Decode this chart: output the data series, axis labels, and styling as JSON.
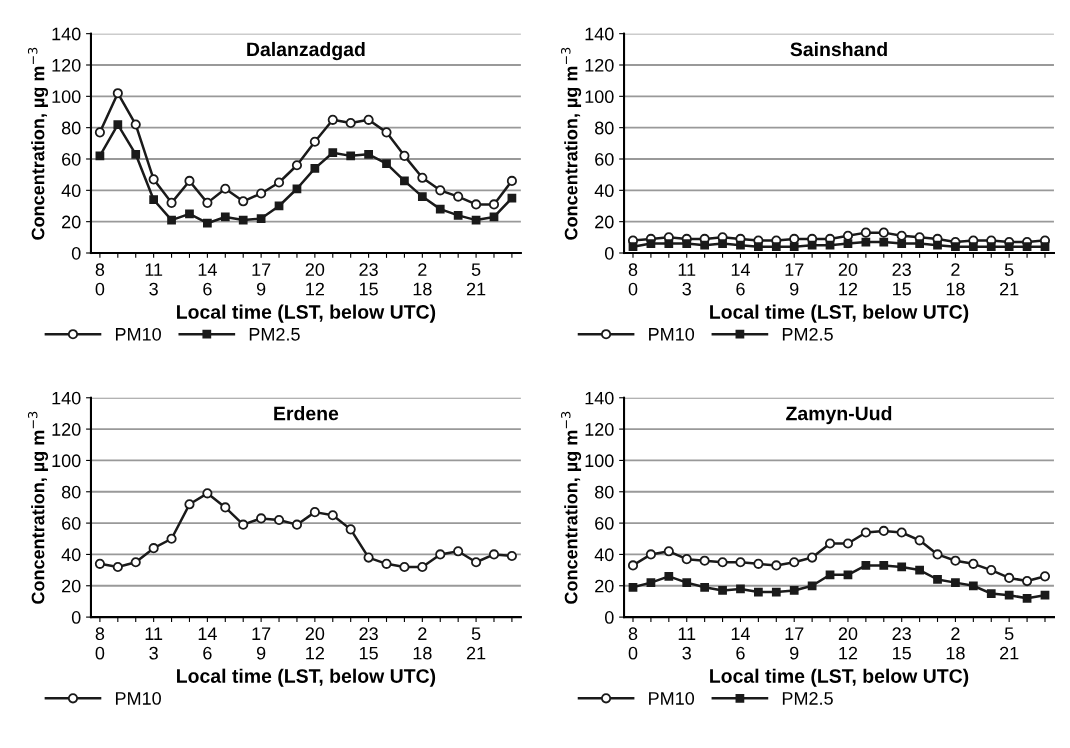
{
  "chart_data": [
    {
      "type": "line",
      "title": "Dalanzadgad",
      "xlabel": "Local time (LST, below UTC)",
      "ylabel": "Concentration, µg m$^{−3}$",
      "categories": [
        "8\n0",
        null,
        null,
        "11\n3",
        null,
        null,
        "14\n6",
        null,
        null,
        "17\n9",
        null,
        null,
        "20\n12",
        null,
        null,
        "23\n15",
        null,
        null,
        "2\n18",
        null,
        null,
        "5\n21",
        null,
        null
      ],
      "series": [
        {
          "name": "PM10",
          "color": "#1a1a1a",
          "marker": "circle",
          "values": [
            77,
            102,
            82,
            47,
            32,
            46,
            32,
            41,
            33,
            38,
            45,
            56,
            71,
            85,
            83,
            85,
            77,
            62,
            48,
            40,
            36,
            31,
            31,
            46
          ]
        },
        {
          "name": "PM2.5",
          "color": "#1a1a1a",
          "marker": "square",
          "values": [
            62,
            82,
            63,
            34,
            21,
            25,
            19,
            23,
            21,
            22,
            30,
            41,
            54,
            64,
            62,
            63,
            57,
            46,
            36,
            28,
            24,
            21,
            23,
            35
          ]
        }
      ],
      "ylim": [
        0,
        140
      ],
      "yticks": [
        0,
        20,
        40,
        60,
        80,
        100,
        120,
        140
      ],
      "grid": "y",
      "legend": "bottom left"
    },
    {
      "type": "line",
      "title": "Sainshand",
      "xlabel": "Local time (LST, below UTC)",
      "ylabel": "Concentration, µg m$^{−3}$",
      "categories": [
        "8\n0",
        null,
        null,
        "11\n3",
        null,
        null,
        "14\n6",
        null,
        null,
        "17\n9",
        null,
        null,
        "20\n12",
        null,
        null,
        "23\n15",
        null,
        null,
        "2\n18",
        null,
        null,
        "5\n21",
        null,
        null
      ],
      "series": [
        {
          "name": "PM10",
          "color": "#1a1a1a",
          "marker": "circle",
          "values": [
            8,
            9,
            10,
            9,
            9,
            10,
            9,
            8,
            8,
            9,
            9,
            9,
            11,
            13,
            13,
            11,
            10,
            9,
            7,
            8,
            8,
            7,
            7,
            8
          ]
        },
        {
          "name": "PM2.5",
          "color": "#1a1a1a",
          "marker": "square",
          "values": [
            4,
            6,
            6,
            6,
            5,
            6,
            5,
            4,
            4,
            4,
            5,
            5,
            6,
            7,
            7,
            6,
            6,
            5,
            4,
            4,
            4,
            4,
            4,
            4
          ]
        }
      ],
      "ylim": [
        0,
        140
      ],
      "yticks": [
        0,
        20,
        40,
        60,
        80,
        100,
        120,
        140
      ],
      "grid": "y",
      "legend": "bottom left"
    },
    {
      "type": "line",
      "title": "Erdene",
      "xlabel": "Local time (LST, below UTC)",
      "ylabel": "Concentration, µg m$^{−3}$",
      "categories": [
        "8\n0",
        null,
        null,
        "11\n3",
        null,
        null,
        "14\n6",
        null,
        null,
        "17\n9",
        null,
        null,
        "20\n12",
        null,
        null,
        "23\n15",
        null,
        null,
        "2\n18",
        null,
        null,
        "5\n21",
        null,
        null
      ],
      "series": [
        {
          "name": "PM10",
          "color": "#1a1a1a",
          "marker": "circle",
          "values": [
            34,
            32,
            35,
            44,
            50,
            72,
            79,
            70,
            59,
            63,
            62,
            59,
            67,
            65,
            56,
            38,
            34,
            32,
            32,
            40,
            42,
            35,
            40,
            39
          ]
        }
      ],
      "ylim": [
        0,
        140
      ],
      "yticks": [
        0,
        20,
        40,
        60,
        80,
        100,
        120,
        140
      ],
      "grid": "y",
      "legend": "bottom left"
    },
    {
      "type": "line",
      "title": "Zamyn-Uud",
      "xlabel": "Local time (LST, below UTC)",
      "ylabel": "Concentration, µg m$^{−3}$",
      "categories": [
        "8\n0",
        null,
        null,
        "11\n3",
        null,
        null,
        "14\n6",
        null,
        null,
        "17\n9",
        null,
        null,
        "20\n12",
        null,
        null,
        "23\n15",
        null,
        null,
        "2\n18",
        null,
        null,
        "5\n21",
        null,
        null
      ],
      "series": [
        {
          "name": "PM10",
          "color": "#1a1a1a",
          "marker": "circle",
          "values": [
            33,
            40,
            42,
            37,
            36,
            35,
            35,
            34,
            33,
            35,
            38,
            47,
            47,
            54,
            55,
            54,
            49,
            40,
            36,
            34,
            30,
            25,
            23,
            26
          ]
        },
        {
          "name": "PM2.5",
          "color": "#1a1a1a",
          "marker": "square",
          "values": [
            19,
            22,
            26,
            22,
            19,
            17,
            18,
            16,
            16,
            17,
            20,
            27,
            27,
            33,
            33,
            32,
            30,
            24,
            22,
            20,
            15,
            14,
            12,
            14
          ]
        }
      ],
      "ylim": [
        0,
        140
      ],
      "yticks": [
        0,
        20,
        40,
        60,
        80,
        100,
        120,
        140
      ],
      "grid": "y",
      "legend": "bottom left"
    }
  ]
}
